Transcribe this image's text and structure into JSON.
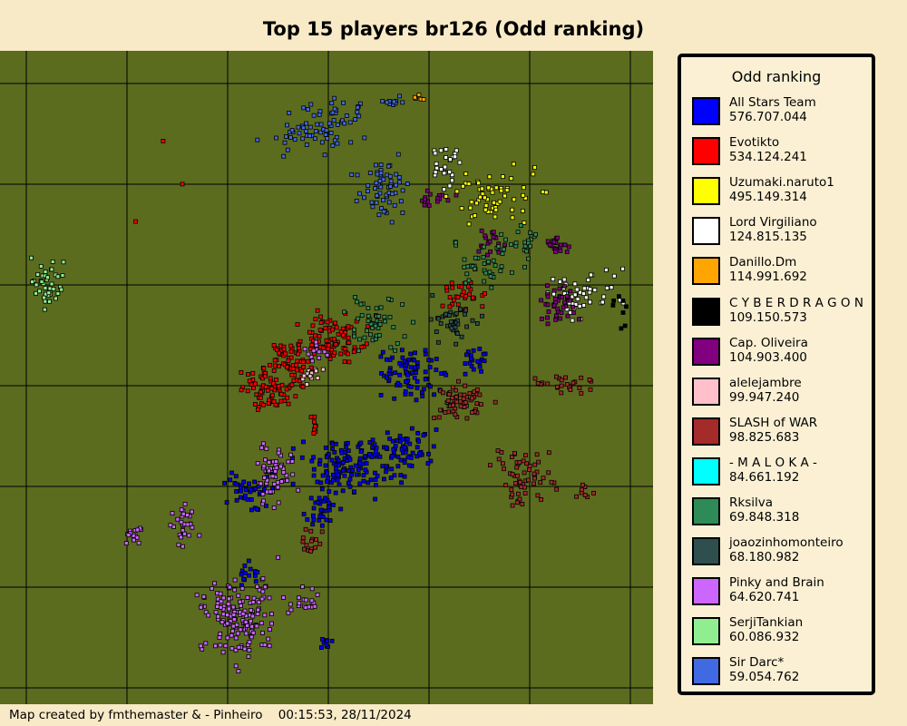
{
  "header": {
    "title": "Top 15 players br126 (Odd ranking)"
  },
  "legend": {
    "title": "Odd ranking",
    "entries": [
      {
        "name": "All Stars Team",
        "score": "576.707.044",
        "color": "#0000ff"
      },
      {
        "name": "Evotikto",
        "score": "534.124.241",
        "color": "#ff0000"
      },
      {
        "name": "Uzumaki.naruto1",
        "score": "495.149.314",
        "color": "#ffff00"
      },
      {
        "name": "Lord Virgiliano",
        "score": "124.815.135",
        "color": "#ffffff"
      },
      {
        "name": "Danillo.Dm",
        "score": "114.991.692",
        "color": "#ffa500"
      },
      {
        "name": "C Y B E R D R A G O N",
        "score": "109.150.573",
        "color": "#000000"
      },
      {
        "name": "Cap. Oliveira",
        "score": "104.903.400",
        "color": "#800080"
      },
      {
        "name": "alelejambre",
        "score": "99.947.240",
        "color": "#ffc0cb"
      },
      {
        "name": "SLASH of WAR",
        "score": "98.825.683",
        "color": "#a52a2a"
      },
      {
        "name": "- M A L O K A -",
        "score": "84.661.192",
        "color": "#00ffff"
      },
      {
        "name": "Rksilva",
        "score": "69.848.318",
        "color": "#2e8b57"
      },
      {
        "name": "joaozinhomonteiro",
        "score": "68.180.982",
        "color": "#2f4f4f"
      },
      {
        "name": "Pinky and Brain",
        "score": "64.620.741",
        "color": "#cc66ff"
      },
      {
        "name": "SerjiTankian",
        "score": "60.086.932",
        "color": "#90ee90"
      },
      {
        "name": "Sir Darc*",
        "score": "59.054.762",
        "color": "#4169e1"
      }
    ]
  },
  "footer": {
    "credit": "Map created by fmthemaster & - Pinheiro",
    "timestamp": "00:15:53, 28/11/2024"
  }
}
